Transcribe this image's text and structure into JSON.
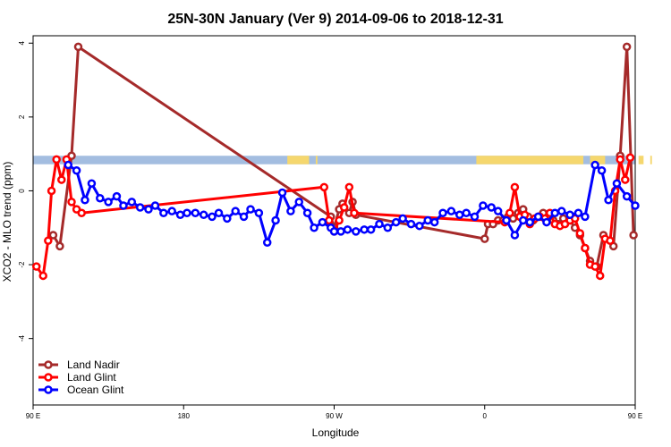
{
  "chart_data": {
    "type": "line",
    "title": "25N-30N January (Ver 9)   2014-09-06 to 2018-12-31",
    "xlabel": "Longitude",
    "ylabel": "XCO2 - MLO trend (ppm)",
    "xlim": [
      90,
      450
    ],
    "ylim": [
      -5.8,
      4.2
    ],
    "x_ticks": [
      {
        "value": 90,
        "label": "90 E"
      },
      {
        "value": 180,
        "label": "180"
      },
      {
        "value": 270,
        "label": "90 W"
      },
      {
        "value": 360,
        "label": "0"
      },
      {
        "value": 450,
        "label": "90 E"
      },
      {
        "value": 540,
        "label": "180"
      }
    ],
    "y_ticks": [
      -4,
      -2,
      0,
      2,
      4
    ],
    "grid": false,
    "legend_position": "bottom-left",
    "land_band": {
      "ymin": 0.72,
      "ymax": 0.95,
      "ocean_color": "#a3bde0",
      "land_color": "#f5d76e",
      "land_segments": [
        [
          242,
          255
        ],
        [
          259,
          260
        ],
        [
          355,
          419
        ],
        [
          423,
          432
        ],
        [
          452,
          455
        ],
        [
          459,
          460
        ]
      ]
    },
    "series": [
      {
        "name": "Land Nadir",
        "color": "#a52a2a",
        "x": [
          102,
          106,
          113,
          117,
          360,
          362,
          365,
          368,
          371,
          374,
          377,
          380,
          383,
          386,
          389,
          392,
          395,
          398,
          401,
          404,
          407,
          411,
          414,
          417,
          420,
          423,
          427,
          431,
          437,
          441,
          445,
          449,
          452,
          456,
          461,
          465,
          268,
          270,
          273,
          275,
          279,
          281,
          283
        ],
        "y": [
          -1.2,
          -1.5,
          0.95,
          3.9,
          -1.3,
          -0.9,
          -0.9,
          -0.8,
          -0.8,
          -0.7,
          -0.75,
          -0.6,
          -0.5,
          -0.7,
          -0.8,
          -0.7,
          -0.6,
          -0.7,
          -0.8,
          -0.9,
          -0.75,
          -0.8,
          -1.0,
          -1.2,
          -1.55,
          -1.9,
          -2.05,
          -1.2,
          -1.5,
          0.95,
          3.9,
          -1.2,
          -1.5,
          -0.8,
          -0.5,
          -0.3,
          -0.7,
          -1.0,
          -0.5,
          -0.35,
          -0.6,
          -0.3,
          -0.65
        ]
      },
      {
        "name": "Land Glint",
        "color": "#ff0000",
        "x": [
          92,
          96,
          99,
          101,
          104,
          107,
          110,
          113,
          116,
          119,
          372,
          375,
          378,
          381,
          384,
          387,
          390,
          393,
          396,
          399,
          402,
          405,
          408,
          411,
          414,
          417,
          420,
          423,
          426,
          429,
          432,
          435,
          438,
          441,
          444,
          447,
          264,
          267,
          270,
          273,
          276,
          279,
          282
        ],
        "y": [
          -2.05,
          -2.3,
          -1.35,
          0.0,
          0.85,
          0.3,
          0.85,
          -0.3,
          -0.5,
          -0.6,
          -0.85,
          -0.6,
          0.1,
          -0.7,
          -0.65,
          -0.9,
          -0.75,
          -0.7,
          -0.75,
          -0.6,
          -0.9,
          -0.95,
          -0.9,
          -0.8,
          -0.75,
          -1.15,
          -1.55,
          -2.0,
          -2.05,
          -2.3,
          -1.3,
          -1.35,
          0.0,
          0.85,
          0.3,
          0.9,
          0.1,
          -0.8,
          -1.1,
          -0.8,
          -0.45,
          0.1,
          -0.6
        ]
      },
      {
        "name": "Ocean Glint",
        "color": "#0000ff",
        "x": [
          111,
          116,
          121,
          125,
          130,
          135,
          140,
          144,
          149,
          154,
          159,
          163,
          168,
          173,
          178,
          182,
          187,
          192,
          197,
          201,
          206,
          211,
          216,
          220,
          225,
          230,
          235,
          239,
          244,
          249,
          254,
          258,
          263,
          268,
          270,
          274,
          278,
          283,
          288,
          292,
          297,
          302,
          307,
          311,
          316,
          321,
          326,
          330,
          335,
          340,
          345,
          349,
          354,
          359,
          364,
          368,
          373,
          378,
          383,
          387,
          392,
          397,
          402,
          406,
          411,
          416,
          420,
          426,
          430,
          434,
          439,
          445,
          450
        ],
        "y": [
          0.7,
          0.55,
          -0.25,
          0.2,
          -0.2,
          -0.3,
          -0.15,
          -0.4,
          -0.3,
          -0.45,
          -0.5,
          -0.4,
          -0.6,
          -0.55,
          -0.65,
          -0.6,
          -0.6,
          -0.65,
          -0.7,
          -0.6,
          -0.75,
          -0.55,
          -0.7,
          -0.5,
          -0.6,
          -1.4,
          -0.8,
          -0.05,
          -0.55,
          -0.3,
          -0.6,
          -1.0,
          -0.85,
          -1.0,
          -1.1,
          -1.1,
          -1.05,
          -1.1,
          -1.05,
          -1.05,
          -0.9,
          -1.0,
          -0.85,
          -0.75,
          -0.9,
          -0.95,
          -0.8,
          -0.85,
          -0.6,
          -0.55,
          -0.65,
          -0.6,
          -0.7,
          -0.4,
          -0.45,
          -0.55,
          -0.8,
          -1.2,
          -0.8,
          -0.85,
          -0.7,
          -0.85,
          -0.6,
          -0.55,
          -0.65,
          -0.6,
          -0.7,
          0.7,
          0.55,
          -0.25,
          0.2,
          -0.15,
          -0.4
        ]
      }
    ]
  }
}
